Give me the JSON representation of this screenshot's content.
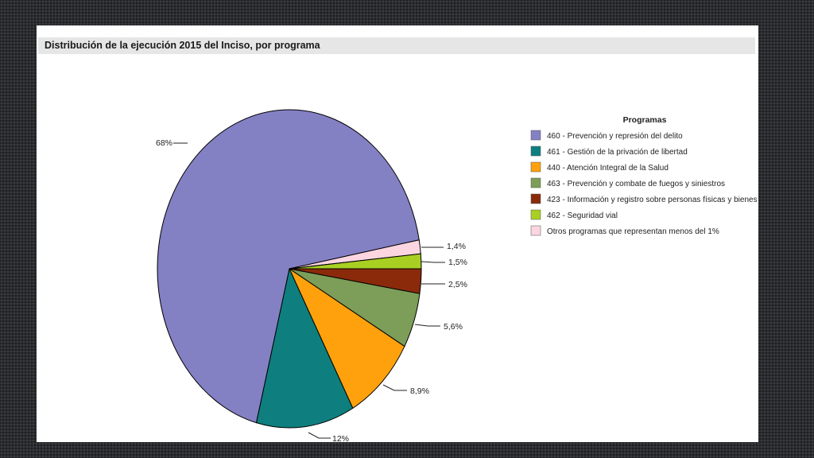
{
  "title": "Distribución de la ejecución 2015 del Inciso, por programa",
  "chart_data": {
    "type": "pie",
    "title": "Distribución de la ejecución 2015 del Inciso, por programa",
    "legend_title": "Programas",
    "legend_position": "right",
    "slices": [
      {
        "label": "460 - Prevención y represión del delito",
        "value": 68,
        "pct_label": "68%",
        "color": "#8480c4"
      },
      {
        "label": "461 - Gestión de la privación de libertad",
        "value": 12,
        "pct_label": "12%",
        "color": "#0e7f7e"
      },
      {
        "label": "440 - Atención Integral de la Salud",
        "value": 8.9,
        "pct_label": "8,9%",
        "color": "#ffa10d"
      },
      {
        "label": "463 - Prevención y combate de fuegos y siniestros",
        "value": 5.6,
        "pct_label": "5,6%",
        "color": "#7c9e58"
      },
      {
        "label": "423 - Información y registro sobre personas físicas y bienes",
        "value": 2.5,
        "pct_label": "2,5%",
        "color": "#8a2a0a"
      },
      {
        "label": "462 - Seguridad vial",
        "value": 1.5,
        "pct_label": "1,5%",
        "color": "#a9cf23"
      },
      {
        "label": "Otros programas que representan menos del 1%",
        "value": 1.4,
        "pct_label": "1,4%",
        "color": "#fbd5e0"
      }
    ]
  }
}
